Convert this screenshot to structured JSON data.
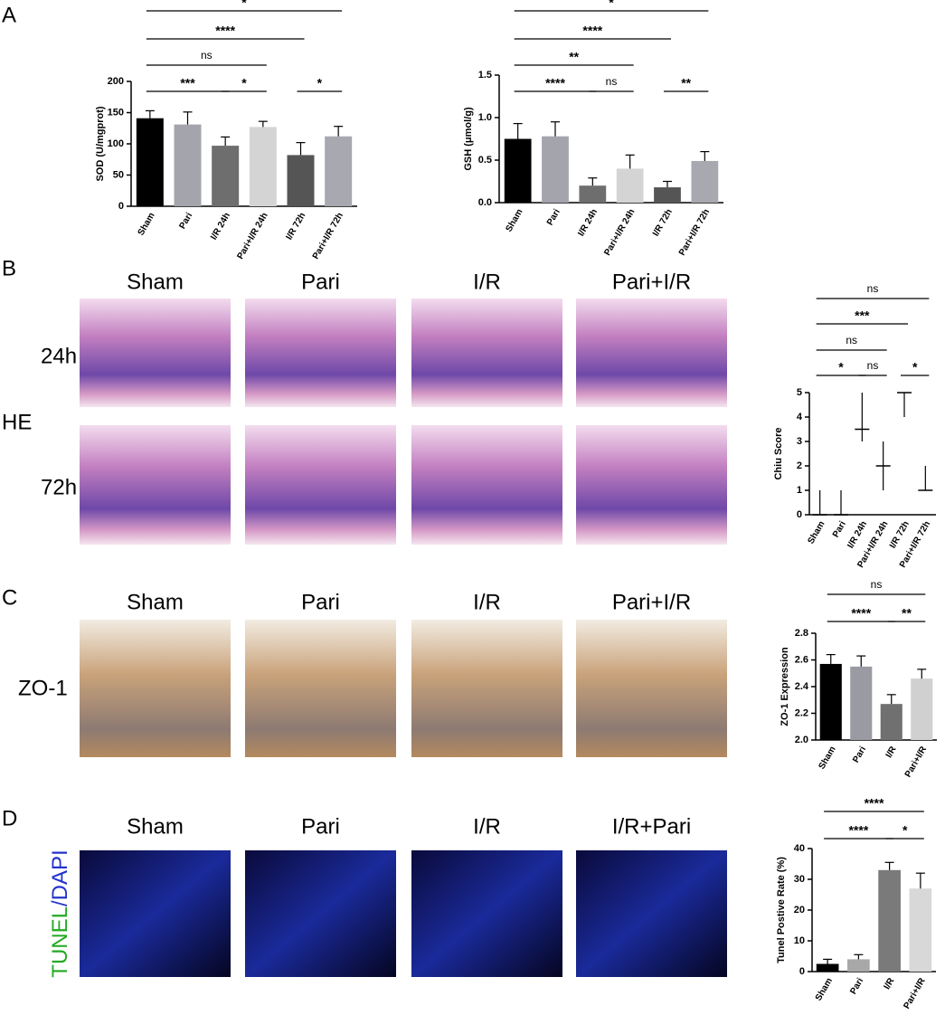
{
  "panel_labels": [
    "A",
    "B",
    "C",
    "D"
  ],
  "he_panel": {
    "columns": [
      "Sham",
      "Pari",
      "I/R",
      "Pari+I/R"
    ],
    "rows": [
      "24h",
      "72h"
    ],
    "stain": "HE"
  },
  "zo1_panel": {
    "columns": [
      "Sham",
      "Pari",
      "I/R",
      "Pari+I/R"
    ],
    "stain": "ZO-1"
  },
  "tunel_panel": {
    "columns": [
      "Sham",
      "Pari",
      "I/R",
      "I/R+Pari"
    ],
    "stain": [
      "TUNEL",
      "/DAPI"
    ]
  },
  "chart_data": [
    {
      "type": "bar",
      "y_label": "SOD (U/mgprot)",
      "categories": [
        "Sham",
        "Pari",
        "I/R 24h",
        "Pari+I/R 24h",
        "I/R 72h",
        "Pari+I/R 72h"
      ],
      "values": [
        141,
        131,
        97,
        127,
        82,
        112
      ],
      "errors": [
        12,
        20,
        14,
        9,
        20,
        16
      ],
      "colors": [
        "#000000",
        "#a4a4ac",
        "#6e6e6e",
        "#d4d4d4",
        "#555555",
        "#a8a8b0"
      ],
      "ylim": [
        0,
        200
      ],
      "yticks": [
        0,
        50,
        100,
        150,
        200
      ],
      "comparisons": [
        "*",
        "****",
        "ns",
        "***",
        "*",
        "*"
      ]
    },
    {
      "type": "bar",
      "y_label": "GSH (μmol/g)",
      "categories": [
        "Sham",
        "Pari",
        "I/R 24h",
        "Pari+I/R 24h",
        "I/R 72h",
        "Pari+I/R 72h"
      ],
      "values": [
        0.75,
        0.78,
        0.2,
        0.4,
        0.18,
        0.49
      ],
      "errors": [
        0.18,
        0.17,
        0.09,
        0.16,
        0.07,
        0.11
      ],
      "colors": [
        "#000000",
        "#a4a4ac",
        "#6e6e6e",
        "#d4d4d4",
        "#555555",
        "#a8a8b0"
      ],
      "ylim": [
        0,
        1.5
      ],
      "yticks": [
        {
          "value": 0,
          "label": "0.0"
        },
        {
          "value": 0.5,
          "label": "0.5"
        },
        {
          "value": 1,
          "label": "1.0"
        },
        {
          "value": 1.5,
          "label": "1.5"
        }
      ],
      "comparisons": [
        "*",
        "****",
        "**",
        "****",
        "ns",
        "**"
      ]
    },
    {
      "type": "median",
      "y_label": "Chiu Score",
      "categories": [
        "Sham",
        "Pari",
        "I/R 24h",
        "Pari+I/R 24h",
        "I/R 72h",
        "Pari+I/R 72h"
      ],
      "values": [
        0,
        0,
        3.5,
        2,
        5,
        1
      ],
      "min": [
        0,
        0,
        3,
        1,
        4,
        1
      ],
      "max": [
        1,
        1,
        5,
        3,
        5,
        2
      ],
      "ylim": [
        0,
        5
      ],
      "yticks": [
        0,
        1,
        2,
        3,
        4,
        5
      ],
      "comparisons": [
        "ns",
        "***",
        "ns",
        "*",
        "ns",
        "*"
      ]
    },
    {
      "type": "bar",
      "y_label": "ZO-1 Expression",
      "categories": [
        "Sham",
        "Pari",
        "I/R",
        "Pari+I/R"
      ],
      "values": [
        2.57,
        2.55,
        2.27,
        2.46
      ],
      "errors": [
        0.07,
        0.08,
        0.07,
        0.07
      ],
      "colors": [
        "#000000",
        "#9a9aa2",
        "#707070",
        "#d0d0d0"
      ],
      "ylim": [
        2.0,
        2.8
      ],
      "yticks": [
        {
          "value": 2,
          "label": "2.0"
        },
        {
          "value": 2.2,
          "label": "2.2"
        },
        {
          "value": 2.4,
          "label": "2.4"
        },
        {
          "value": 2.6,
          "label": "2.6"
        },
        {
          "value": 2.8,
          "label": "2.8"
        }
      ],
      "comparisons": [
        "ns",
        "****",
        "**"
      ]
    },
    {
      "type": "bar",
      "y_label": "Tunel Postive Rate (%)",
      "categories": [
        "Sham",
        "Pari",
        "I/R",
        "Pari+I/R"
      ],
      "values": [
        2.5,
        4,
        33,
        27
      ],
      "errors": [
        1.5,
        1.5,
        2.5,
        5
      ],
      "colors": [
        "#000000",
        "#a8a8a8",
        "#7a7a7a",
        "#d8d8d8"
      ],
      "ylim": [
        0,
        40
      ],
      "yticks": [
        0,
        10,
        20,
        30,
        40
      ],
      "comparisons": [
        "****",
        "****",
        "*"
      ]
    }
  ]
}
